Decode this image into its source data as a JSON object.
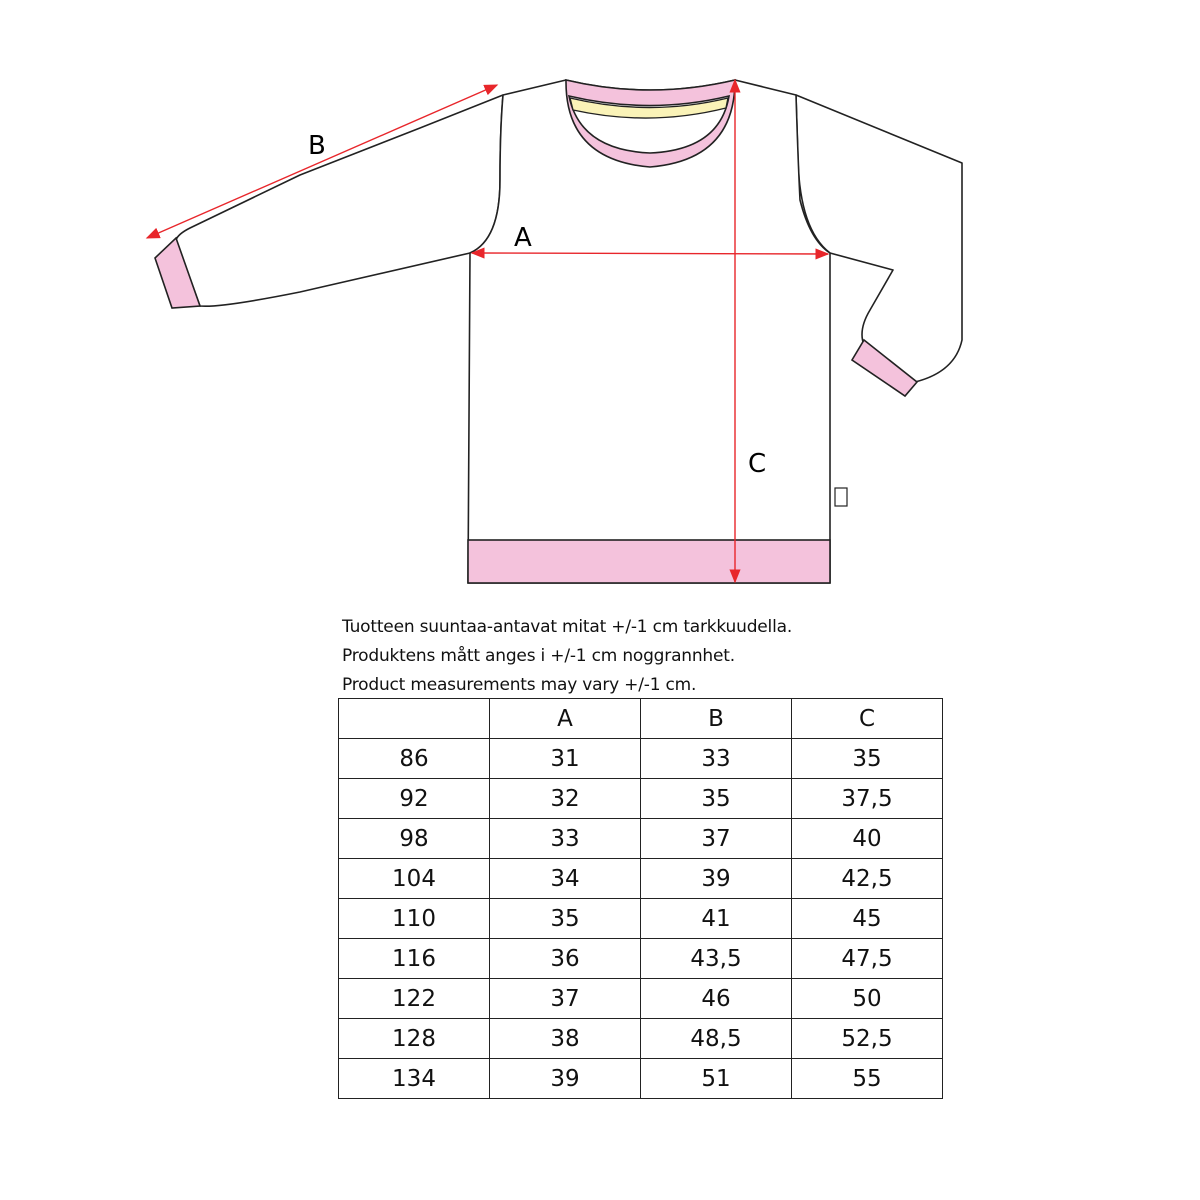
{
  "diagram": {
    "labels": {
      "A": "A",
      "B": "B",
      "C": "C"
    },
    "colors": {
      "rib": "#f4c2dc",
      "inner_band": "#faf3b8",
      "measure": "#e8262b",
      "outline": "#222222"
    }
  },
  "notes": [
    "Tuotteen suuntaa-antavat mitat +/-1 cm tarkkuudella.",
    "Produktens mått anges i +/-1 cm noggrannhet.",
    "Product measurements may vary +/-1 cm."
  ],
  "table": {
    "headers": [
      "",
      "A",
      "B",
      "C"
    ],
    "rows": [
      [
        "86",
        "31",
        "33",
        "35"
      ],
      [
        "92",
        "32",
        "35",
        "37,5"
      ],
      [
        "98",
        "33",
        "37",
        "40"
      ],
      [
        "104",
        "34",
        "39",
        "42,5"
      ],
      [
        "110",
        "35",
        "41",
        "45"
      ],
      [
        "116",
        "36",
        "43,5",
        "47,5"
      ],
      [
        "122",
        "37",
        "46",
        "50"
      ],
      [
        "128",
        "38",
        "48,5",
        "52,5"
      ],
      [
        "134",
        "39",
        "51",
        "55"
      ]
    ]
  }
}
